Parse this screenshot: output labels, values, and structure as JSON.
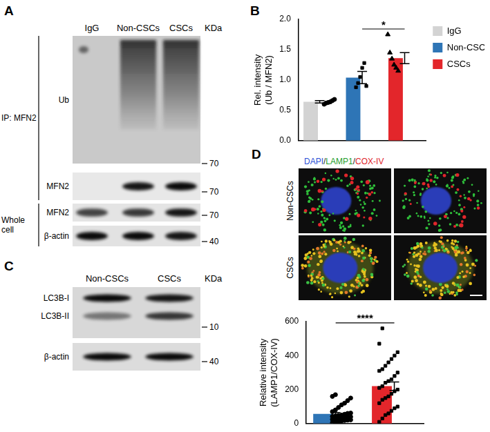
{
  "panels": {
    "A": {
      "letter": "A",
      "lanes": [
        "IgG",
        "Non-CSCs",
        "CSCs"
      ],
      "unit": "KDa",
      "groups": [
        {
          "label": "IP: MFN2",
          "blots": [
            {
              "names": [
                "Ub"
              ],
              "marker": 70
            },
            {
              "names": [
                "MFN2"
              ],
              "marker": 70
            }
          ]
        },
        {
          "label": "Whole cell",
          "blots": [
            {
              "names": [
                "MFN2"
              ],
              "marker": 70
            },
            {
              "names": [
                "β-actin"
              ],
              "marker": 40
            }
          ]
        }
      ]
    },
    "B": {
      "letter": "B"
    },
    "C": {
      "letter": "C",
      "lanes": [
        "Non-CSCs",
        "CSCs"
      ],
      "unit": "KDa",
      "blots": [
        {
          "names": [
            "LC3B-I",
            "LC3B-II"
          ],
          "marker": 10
        },
        {
          "names": [
            "β-actin"
          ],
          "marker": 40
        }
      ]
    },
    "D": {
      "letter": "D",
      "stain_title": [
        {
          "text": "DAPI",
          "color": "#2a4fd6"
        },
        {
          "text": "/",
          "color": "#222222"
        },
        {
          "text": "LAMP1",
          "color": "#1f9e2c"
        },
        {
          "text": "/",
          "color": "#222222"
        },
        {
          "text": "COX-IV",
          "color": "#e0262b"
        }
      ],
      "rows": [
        "Non-CSCs",
        "CSCs"
      ]
    }
  },
  "chart_data": [
    {
      "type": "bar",
      "categories": [
        "IgG",
        "Non-CSCs",
        "CSCs"
      ],
      "values": [
        0.64,
        1.04,
        1.36
      ],
      "errors": [
        0.02,
        0.1,
        0.09
      ],
      "points": [
        [
          0.6,
          0.62,
          0.63,
          0.64,
          0.66,
          0.68
        ],
        [
          0.88,
          0.95,
          1.05,
          1.2,
          1.28,
          0.9
        ],
        [
          1.75,
          1.45,
          1.35,
          1.25,
          1.2,
          1.15
        ]
      ],
      "markers": [
        "circle",
        "square",
        "triangle"
      ],
      "colors": [
        "#d3d3d3",
        "#2e75b6",
        "#e3262b"
      ],
      "ylabel": [
        "Rel. intensity",
        "(Ub / MFN2)"
      ],
      "ylim": [
        0,
        2
      ],
      "yticks": [
        {
          "value": 0,
          "label": "0.0"
        },
        {
          "value": 0.5,
          "label": "0.5"
        },
        {
          "value": 1,
          "label": "1.0"
        },
        {
          "value": 1.5,
          "label": "1.5"
        },
        {
          "value": 2,
          "label": "2.0"
        }
      ],
      "significance": [
        {
          "from": "Non-CSCs",
          "to": "CSCs",
          "label": "*"
        }
      ],
      "grid": false,
      "tick_labels": "y",
      "legend": "right"
    },
    {
      "type": "bar",
      "categories": [
        "Non-CSCs",
        "CSCs"
      ],
      "values": [
        57,
        220
      ],
      "errors": [
        8,
        25
      ],
      "points": [
        [
          5,
          10,
          12,
          15,
          18,
          20,
          22,
          25,
          28,
          30,
          32,
          35,
          38,
          40,
          42,
          45,
          48,
          50,
          55,
          60,
          62,
          70,
          80,
          95,
          110,
          120,
          135,
          150,
          160,
          170
        ],
        [
          10,
          30,
          50,
          60,
          75,
          90,
          100,
          120,
          140,
          150,
          160,
          175,
          190,
          200,
          210,
          220,
          240,
          250,
          260,
          280,
          300,
          310,
          320,
          340,
          360,
          380,
          400,
          420,
          470,
          560
        ]
      ],
      "markers": [
        "circle",
        "square"
      ],
      "colors": [
        "#2e75b6",
        "#e3262b"
      ],
      "ylabel": [
        "Relative intensity",
        "(LAMP1/COX-IV)"
      ],
      "ylim": [
        0,
        600
      ],
      "yticks": [
        0,
        200,
        400,
        600
      ],
      "significance": [
        {
          "from": "Non-CSCs",
          "to": "CSCs",
          "label": "****"
        }
      ],
      "grid": false,
      "tick_labels": "y"
    }
  ]
}
